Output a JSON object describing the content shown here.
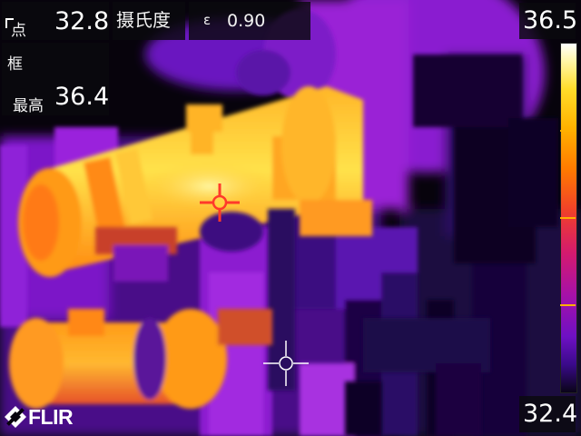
{
  "spot_meter": {
    "label": "点",
    "value": "32.8"
  },
  "unit": {
    "label": "摄氏度"
  },
  "emissivity": {
    "symbol": "ε",
    "value": "0.90"
  },
  "box_measurement": {
    "label": "框",
    "max_label": "最高",
    "max_value": "36.4"
  },
  "scale": {
    "max": "36.5",
    "min": "32.4"
  },
  "brand": {
    "logo": "FLIR"
  },
  "palette": "iron",
  "colors": {
    "tick": "#ffb000",
    "cursor": "#ff3a2a"
  }
}
